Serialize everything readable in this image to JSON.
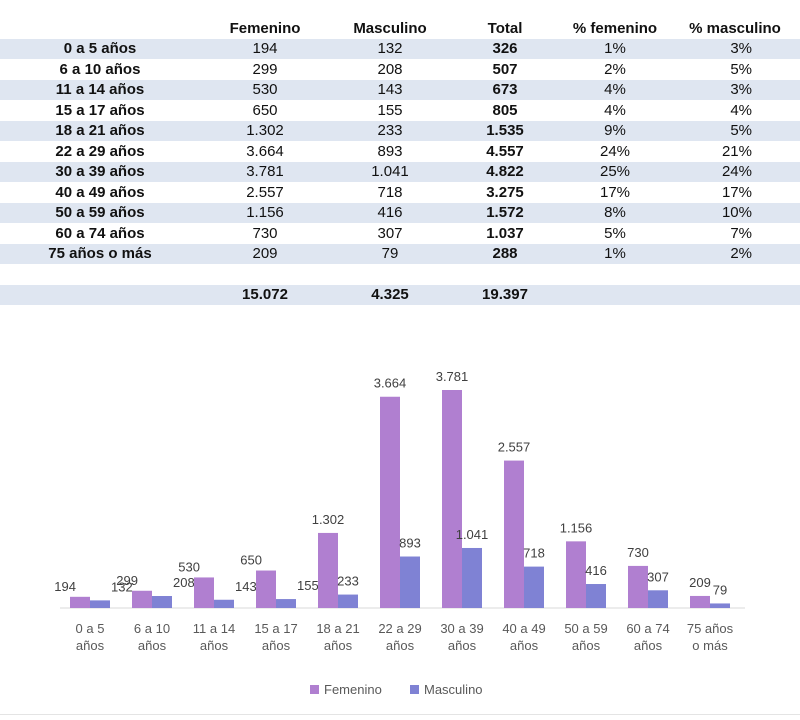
{
  "table": {
    "headers": [
      "",
      "Femenino",
      "Masculino",
      "Total",
      "% femenino",
      "% masculino"
    ],
    "rows": [
      [
        "0 a 5 años",
        "194",
        "132",
        "326",
        "1%",
        "3%"
      ],
      [
        "6 a 10 años",
        "299",
        "208",
        "507",
        "2%",
        "5%"
      ],
      [
        "11 a 14 años",
        "530",
        "143",
        "673",
        "4%",
        "3%"
      ],
      [
        "15 a 17 años",
        "650",
        "155",
        "805",
        "4%",
        "4%"
      ],
      [
        "18 a 21 años",
        "1.302",
        "233",
        "1.535",
        "9%",
        "5%"
      ],
      [
        "22 a 29 años",
        "3.664",
        "893",
        "4.557",
        "24%",
        "21%"
      ],
      [
        "30 a 39 años",
        "3.781",
        "1.041",
        "4.822",
        "25%",
        "24%"
      ],
      [
        "40 a 49 años",
        "2.557",
        "718",
        "3.275",
        "17%",
        "17%"
      ],
      [
        "50 a 59 años",
        "1.156",
        "416",
        "1.572",
        "8%",
        "10%"
      ],
      [
        "60 a 74 años",
        "730",
        "307",
        "1.037",
        "5%",
        "7%"
      ],
      [
        "75 años o más",
        "209",
        "79",
        "288",
        "1%",
        "2%"
      ]
    ],
    "totals": [
      "",
      "15.072",
      "4.325",
      "19.397",
      "",
      ""
    ]
  },
  "chart_data": {
    "type": "bar",
    "categories": [
      "0 a 5 años",
      "6 a 10 años",
      "11 a 14 años",
      "15 a 17 años",
      "18 a 21 años",
      "22 a 29 años",
      "30 a 39 años",
      "40 a 49 años",
      "50 a 59 años",
      "60 a 74 años",
      "75 años o más"
    ],
    "category_lines": [
      [
        "0 a 5",
        "años"
      ],
      [
        "6 a 10",
        "años"
      ],
      [
        "11 a 14",
        "años"
      ],
      [
        "15 a 17",
        "años"
      ],
      [
        "18 a 21",
        "años"
      ],
      [
        "22 a 29",
        "años"
      ],
      [
        "30 a 39",
        "años"
      ],
      [
        "40 a 49",
        "años"
      ],
      [
        "50 a 59",
        "años"
      ],
      [
        "60 a 74",
        "años"
      ],
      [
        "75 años",
        "o más"
      ]
    ],
    "series": [
      {
        "name": "Femenino",
        "values": [
          194,
          299,
          530,
          650,
          1302,
          3664,
          3781,
          2557,
          1156,
          730,
          209
        ],
        "labels": [
          "194",
          "299",
          "530",
          "650",
          "1.302",
          "3.664",
          "3.781",
          "2.557",
          "1.156",
          "730",
          "209"
        ],
        "color": "#b07fd0"
      },
      {
        "name": "Masculino",
        "values": [
          132,
          208,
          143,
          155,
          233,
          893,
          1041,
          718,
          416,
          307,
          79
        ],
        "labels": [
          "132",
          "208",
          "143",
          "155",
          "233",
          "893",
          "1.041",
          "718",
          "416",
          "307",
          "79"
        ],
        "color": "#7f82d4"
      }
    ],
    "ylim": [
      0,
      3781
    ],
    "grid": false,
    "legend": "bottom"
  }
}
